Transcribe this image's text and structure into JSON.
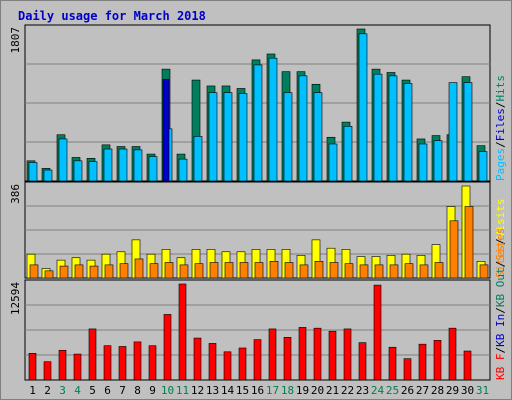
{
  "title": "Daily usage for March 2018",
  "colors": {
    "background": "#c0c0c0",
    "panel": "#c0c0c0",
    "grid": "#808080",
    "hits": "#007f5f",
    "files": "#00c0ff",
    "pages": "#0000cc",
    "visits": "#ffff00",
    "sites": "#ff8000",
    "kbin": "#0000cc",
    "kbout": "#007f5f",
    "kbf": "#ff0000",
    "day_normal": "#000000",
    "day_weekend": "#00804c",
    "legend_sep": "#000000"
  },
  "chart_data": [
    {
      "type": "bar",
      "name": "hits-files-pages",
      "y_max_label": "1807",
      "ylim": [
        0,
        1807
      ],
      "categories": [
        "1",
        "2",
        "3",
        "4",
        "5",
        "6",
        "7",
        "8",
        "9",
        "10",
        "11",
        "12",
        "13",
        "14",
        "15",
        "16",
        "17",
        "18",
        "19",
        "20",
        "21",
        "22",
        "23",
        "24",
        "25",
        "26",
        "27",
        "28",
        "29",
        "30",
        "31"
      ],
      "series": [
        {
          "name": "Hits",
          "values": [
            240,
            150,
            550,
            280,
            270,
            430,
            410,
            410,
            320,
            1330,
            320,
            1200,
            1130,
            1130,
            1100,
            1440,
            1510,
            1300,
            1300,
            1150,
            520,
            700,
            1807,
            1330,
            1290,
            1200,
            500,
            540,
            550,
            1240,
            420
          ]
        },
        {
          "name": "Files",
          "values": [
            220,
            130,
            500,
            240,
            230,
            380,
            380,
            370,
            290,
            620,
            260,
            530,
            1050,
            1050,
            1040,
            1380,
            1460,
            1050,
            1250,
            1050,
            440,
            650,
            1750,
            1270,
            1250,
            1160,
            440,
            480,
            1170,
            1170,
            350
          ]
        },
        {
          "name": "Pages",
          "values": [
            0,
            0,
            0,
            0,
            0,
            0,
            0,
            0,
            0,
            1210,
            0,
            0,
            0,
            0,
            0,
            0,
            0,
            0,
            0,
            0,
            0,
            0,
            0,
            0,
            0,
            0,
            0,
            0,
            0,
            0,
            0
          ]
        }
      ],
      "legend": [
        "Pages",
        "/",
        "Files",
        "/",
        "Hits"
      ]
    },
    {
      "type": "bar",
      "name": "visits-sites",
      "y_max_label": "386",
      "ylim": [
        0,
        386
      ],
      "categories": [
        "1",
        "2",
        "3",
        "4",
        "5",
        "6",
        "7",
        "8",
        "9",
        "10",
        "11",
        "12",
        "13",
        "14",
        "15",
        "16",
        "17",
        "18",
        "19",
        "20",
        "21",
        "22",
        "23",
        "24",
        "25",
        "26",
        "27",
        "28",
        "29",
        "30",
        "31"
      ],
      "series": [
        {
          "name": "Visits",
          "values": [
            100,
            40,
            75,
            85,
            75,
            100,
            110,
            160,
            100,
            120,
            85,
            120,
            120,
            110,
            110,
            120,
            120,
            120,
            95,
            160,
            125,
            120,
            90,
            90,
            95,
            100,
            95,
            140,
            300,
            386,
            70
          ]
        },
        {
          "name": "Sites",
          "values": [
            55,
            30,
            50,
            55,
            50,
            55,
            60,
            80,
            60,
            65,
            55,
            60,
            65,
            65,
            65,
            65,
            70,
            65,
            55,
            70,
            65,
            60,
            55,
            55,
            55,
            60,
            55,
            65,
            240,
            300,
            55
          ]
        }
      ],
      "legend": [
        "Sites",
        "/",
        "Visits"
      ]
    },
    {
      "type": "bar",
      "name": "kbytes",
      "y_max_label": "12594",
      "ylim": [
        0,
        12594
      ],
      "categories": [
        "1",
        "2",
        "3",
        "4",
        "5",
        "6",
        "7",
        "8",
        "9",
        "10",
        "11",
        "12",
        "13",
        "14",
        "15",
        "16",
        "17",
        "18",
        "19",
        "20",
        "21",
        "22",
        "23",
        "24",
        "25",
        "26",
        "27",
        "28",
        "29",
        "30",
        "31"
      ],
      "series": [
        {
          "name": "KB F",
          "values": [
            3500,
            2400,
            3900,
            3400,
            6700,
            4500,
            4400,
            5000,
            4500,
            8600,
            12594,
            5500,
            4800,
            3700,
            4200,
            5300,
            6700,
            5600,
            6900,
            6800,
            6400,
            6700,
            4900,
            12450,
            4300,
            2800,
            4700,
            5200,
            6800,
            3800,
            0
          ]
        }
      ],
      "legend": [
        "KB F",
        "/",
        "KB In",
        "/",
        "KB Out",
        "/",
        "Sites"
      ]
    }
  ],
  "days": [
    {
      "label": "1",
      "weekend": false
    },
    {
      "label": "2",
      "weekend": false
    },
    {
      "label": "3",
      "weekend": true
    },
    {
      "label": "4",
      "weekend": true
    },
    {
      "label": "5",
      "weekend": false
    },
    {
      "label": "6",
      "weekend": false
    },
    {
      "label": "7",
      "weekend": false
    },
    {
      "label": "8",
      "weekend": false
    },
    {
      "label": "9",
      "weekend": false
    },
    {
      "label": "10",
      "weekend": true
    },
    {
      "label": "11",
      "weekend": true
    },
    {
      "label": "12",
      "weekend": false
    },
    {
      "label": "13",
      "weekend": false
    },
    {
      "label": "14",
      "weekend": false
    },
    {
      "label": "15",
      "weekend": false
    },
    {
      "label": "16",
      "weekend": false
    },
    {
      "label": "17",
      "weekend": true
    },
    {
      "label": "18",
      "weekend": true
    },
    {
      "label": "19",
      "weekend": false
    },
    {
      "label": "20",
      "weekend": false
    },
    {
      "label": "21",
      "weekend": false
    },
    {
      "label": "22",
      "weekend": false
    },
    {
      "label": "23",
      "weekend": false
    },
    {
      "label": "24",
      "weekend": true
    },
    {
      "label": "25",
      "weekend": true
    },
    {
      "label": "26",
      "weekend": false
    },
    {
      "label": "27",
      "weekend": false
    },
    {
      "label": "28",
      "weekend": false
    },
    {
      "label": "29",
      "weekend": false
    },
    {
      "label": "30",
      "weekend": false
    },
    {
      "label": "31",
      "weekend": true
    }
  ]
}
